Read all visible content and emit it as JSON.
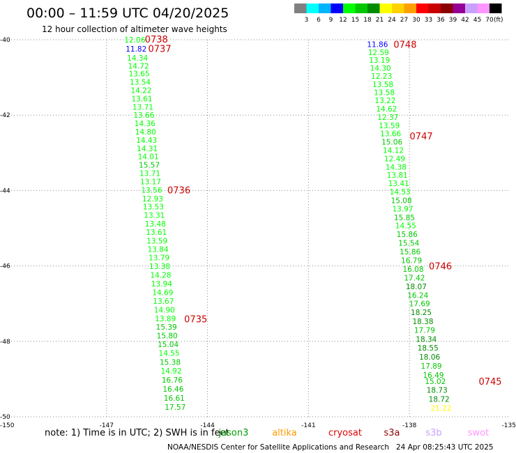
{
  "title": "00:00 – 11:59 UTC 04/20/2025",
  "subtitle": "12 hour collection of altimeter wave heights",
  "legend": {
    "colors": [
      "#808080",
      "#00ffff",
      "#00b4ff",
      "#0000ff",
      "#00ff00",
      "#00c800",
      "#008c00",
      "#ffff00",
      "#ffd200",
      "#ffa000",
      "#ff0000",
      "#c80000",
      "#8c0000",
      "#960096",
      "#c8a0ff",
      "#ff96ff",
      "#000000"
    ],
    "labels": [
      "3",
      "6",
      "9",
      "12",
      "15",
      "18",
      "21",
      "24",
      "27",
      "30",
      "33",
      "36",
      "39",
      "42",
      "45",
      "70"
    ],
    "unit": "(ft)"
  },
  "note": "note:  1) Time is in UTC;  2) SWH is in feet",
  "satellites": [
    {
      "name": "jason3",
      "color": "#00a000"
    },
    {
      "name": "altika",
      "color": "#ff9900"
    },
    {
      "name": "cryosat",
      "color": "#e00000"
    },
    {
      "name": "s3a",
      "color": "#8c0000"
    },
    {
      "name": "s3b",
      "color": "#c8a0ff"
    },
    {
      "name": "swot",
      "color": "#ff96ff"
    }
  ],
  "credit": "NOAA/NESDIS Center for Satellite Applications and Research",
  "timestamp": "24 Apr 08:25:43 UTC 2025",
  "chart_data": {
    "type": "scatter",
    "xlim": [
      -150,
      -135
    ],
    "ylim": [
      -50,
      -40
    ],
    "x_ticks": [
      "-150",
      "-147",
      "-144",
      "-141",
      "-138",
      "-135"
    ],
    "y_ticks": [
      "-40",
      "-42",
      "-44",
      "-46",
      "-48",
      "-50"
    ],
    "grid": true,
    "tracks": [
      {
        "points": [
          {
            "lon": -146.16,
            "lat": -40.0,
            "v": "12.06"
          },
          {
            "lon": -146.12,
            "lat": -40.24,
            "v": "11.82"
          },
          {
            "lon": -146.08,
            "lat": -40.48,
            "v": "14.34"
          },
          {
            "lon": -146.05,
            "lat": -40.69,
            "v": "14.72"
          },
          {
            "lon": -146.03,
            "lat": -40.9,
            "v": "13.65"
          },
          {
            "lon": -146.0,
            "lat": -41.12,
            "v": "13.54"
          },
          {
            "lon": -145.97,
            "lat": -41.34,
            "v": "14.22"
          },
          {
            "lon": -145.95,
            "lat": -41.56,
            "v": "13.61"
          },
          {
            "lon": -145.92,
            "lat": -41.78,
            "v": "13.71"
          },
          {
            "lon": -145.89,
            "lat": -42.0,
            "v": "13.66"
          },
          {
            "lon": -145.86,
            "lat": -42.22,
            "v": "14.36"
          },
          {
            "lon": -145.84,
            "lat": -42.44,
            "v": "14.80"
          },
          {
            "lon": -145.81,
            "lat": -42.66,
            "v": "14.43"
          },
          {
            "lon": -145.79,
            "lat": -42.88,
            "v": "14.31"
          },
          {
            "lon": -145.76,
            "lat": -43.1,
            "v": "14.01"
          },
          {
            "lon": -145.73,
            "lat": -43.32,
            "v": "15.57"
          },
          {
            "lon": -145.71,
            "lat": -43.54,
            "v": "13.71"
          },
          {
            "lon": -145.69,
            "lat": -43.76,
            "v": "13.17"
          },
          {
            "lon": -145.66,
            "lat": -43.98,
            "v": "13.56"
          },
          {
            "lon": -145.63,
            "lat": -44.21,
            "v": "12.93"
          },
          {
            "lon": -145.61,
            "lat": -44.43,
            "v": "13.53"
          },
          {
            "lon": -145.58,
            "lat": -44.65,
            "v": "13.31"
          },
          {
            "lon": -145.55,
            "lat": -44.88,
            "v": "13.48"
          },
          {
            "lon": -145.52,
            "lat": -45.1,
            "v": "13.61"
          },
          {
            "lon": -145.5,
            "lat": -45.33,
            "v": "13.59"
          },
          {
            "lon": -145.47,
            "lat": -45.55,
            "v": "13.84"
          },
          {
            "lon": -145.44,
            "lat": -45.78,
            "v": "13.79"
          },
          {
            "lon": -145.42,
            "lat": -46.01,
            "v": "13.38"
          },
          {
            "lon": -145.39,
            "lat": -46.24,
            "v": "14.28"
          },
          {
            "lon": -145.36,
            "lat": -46.47,
            "v": "13.94"
          },
          {
            "lon": -145.33,
            "lat": -46.7,
            "v": "14.69"
          },
          {
            "lon": -145.31,
            "lat": -46.93,
            "v": "13.67"
          },
          {
            "lon": -145.28,
            "lat": -47.16,
            "v": "14.90"
          },
          {
            "lon": -145.25,
            "lat": -47.39,
            "v": "13.89"
          },
          {
            "lon": -145.22,
            "lat": -47.62,
            "v": "15.39"
          },
          {
            "lon": -145.2,
            "lat": -47.85,
            "v": "15.80"
          },
          {
            "lon": -145.17,
            "lat": -48.08,
            "v": "15.04"
          },
          {
            "lon": -145.14,
            "lat": -48.31,
            "v": "14.55"
          },
          {
            "lon": -145.11,
            "lat": -48.55,
            "v": "15.38"
          },
          {
            "lon": -145.08,
            "lat": -48.78,
            "v": "14.92"
          },
          {
            "lon": -145.05,
            "lat": -49.02,
            "v": "16.76"
          },
          {
            "lon": -145.02,
            "lat": -49.26,
            "v": "16.46"
          },
          {
            "lon": -144.99,
            "lat": -49.5,
            "v": "16.61"
          },
          {
            "lon": -144.96,
            "lat": -49.74,
            "v": "17.57"
          }
        ],
        "times": [
          {
            "lon": -145.52,
            "lat": -39.98,
            "t": "0738"
          },
          {
            "lon": -145.42,
            "lat": -40.23,
            "t": "0737"
          },
          {
            "lon": -144.85,
            "lat": -43.98,
            "t": "0736"
          },
          {
            "lon": -144.35,
            "lat": -47.4,
            "t": "0735"
          }
        ]
      },
      {
        "points": [
          {
            "lon": -138.95,
            "lat": -40.12,
            "v": "11.86"
          },
          {
            "lon": -138.92,
            "lat": -40.33,
            "v": "12.59"
          },
          {
            "lon": -138.89,
            "lat": -40.54,
            "v": "13.19"
          },
          {
            "lon": -138.86,
            "lat": -40.75,
            "v": "14.30"
          },
          {
            "lon": -138.83,
            "lat": -40.96,
            "v": "12.23"
          },
          {
            "lon": -138.79,
            "lat": -41.18,
            "v": "13.58"
          },
          {
            "lon": -138.75,
            "lat": -41.4,
            "v": "13.58"
          },
          {
            "lon": -138.72,
            "lat": -41.61,
            "v": "13.22"
          },
          {
            "lon": -138.68,
            "lat": -41.83,
            "v": "14.62"
          },
          {
            "lon": -138.64,
            "lat": -42.05,
            "v": "12.37"
          },
          {
            "lon": -138.6,
            "lat": -42.27,
            "v": "13.59"
          },
          {
            "lon": -138.56,
            "lat": -42.49,
            "v": "13.66"
          },
          {
            "lon": -138.52,
            "lat": -42.71,
            "v": "15.06"
          },
          {
            "lon": -138.48,
            "lat": -42.93,
            "v": "14.12"
          },
          {
            "lon": -138.44,
            "lat": -43.15,
            "v": "12.49"
          },
          {
            "lon": -138.4,
            "lat": -43.37,
            "v": "14.38"
          },
          {
            "lon": -138.36,
            "lat": -43.59,
            "v": "13.81"
          },
          {
            "lon": -138.32,
            "lat": -43.81,
            "v": "13.41"
          },
          {
            "lon": -138.28,
            "lat": -44.03,
            "v": "14.53"
          },
          {
            "lon": -138.24,
            "lat": -44.26,
            "v": "15.08"
          },
          {
            "lon": -138.2,
            "lat": -44.48,
            "v": "13.97"
          },
          {
            "lon": -138.15,
            "lat": -44.71,
            "v": "15.85"
          },
          {
            "lon": -138.11,
            "lat": -44.93,
            "v": "14.55"
          },
          {
            "lon": -138.07,
            "lat": -45.16,
            "v": "15.86"
          },
          {
            "lon": -138.02,
            "lat": -45.39,
            "v": "15.54"
          },
          {
            "lon": -137.98,
            "lat": -45.62,
            "v": "15.86"
          },
          {
            "lon": -137.94,
            "lat": -45.85,
            "v": "16.79"
          },
          {
            "lon": -137.89,
            "lat": -46.08,
            "v": "16.08"
          },
          {
            "lon": -137.85,
            "lat": -46.31,
            "v": "17.42"
          },
          {
            "lon": -137.8,
            "lat": -46.54,
            "v": "18.07"
          },
          {
            "lon": -137.75,
            "lat": -46.77,
            "v": "16.24"
          },
          {
            "lon": -137.7,
            "lat": -47.0,
            "v": "17.69"
          },
          {
            "lon": -137.65,
            "lat": -47.23,
            "v": "18.25"
          },
          {
            "lon": -137.6,
            "lat": -47.47,
            "v": "18.38"
          },
          {
            "lon": -137.55,
            "lat": -47.7,
            "v": "17.79"
          },
          {
            "lon": -137.5,
            "lat": -47.94,
            "v": "18.34"
          },
          {
            "lon": -137.45,
            "lat": -48.17,
            "v": "18.55"
          },
          {
            "lon": -137.4,
            "lat": -48.41,
            "v": "18.06"
          },
          {
            "lon": -137.35,
            "lat": -48.65,
            "v": "17.89"
          },
          {
            "lon": -137.29,
            "lat": -48.89,
            "v": "16.49"
          },
          {
            "lon": -137.23,
            "lat": -49.06,
            "v": "15.02"
          },
          {
            "lon": -137.18,
            "lat": -49.29,
            "v": "18.73"
          },
          {
            "lon": -137.12,
            "lat": -49.53,
            "v": "18.72"
          },
          {
            "lon": -137.06,
            "lat": -49.77,
            "v": "21.22"
          }
        ],
        "times": [
          {
            "lon": -138.13,
            "lat": -40.12,
            "t": "0748"
          },
          {
            "lon": -137.65,
            "lat": -42.55,
            "t": "0747"
          },
          {
            "lon": -137.08,
            "lat": -46.0,
            "t": "0746"
          },
          {
            "lon": -135.6,
            "lat": -49.06,
            "t": "0745"
          }
        ]
      }
    ]
  }
}
